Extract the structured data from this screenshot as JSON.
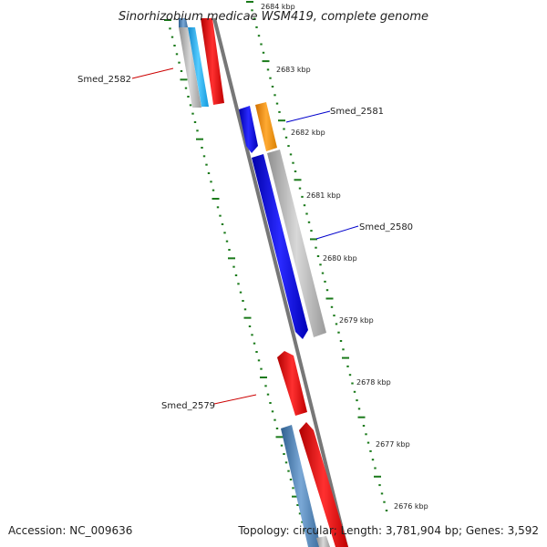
{
  "title": "Sinorhizobium medicae WSM419, complete genome",
  "footer": {
    "accession": "Accession: NC_009636",
    "summary": "Topology: circular; Length: 3,781,904 bp; Genes: 3,592"
  },
  "colors": {
    "backbone": "#777777",
    "tick": "#1a7a1a",
    "gene_label_red": "#cc0000",
    "gene_label_blue": "#0000cc"
  },
  "ticks": [
    {
      "kbp": 2684,
      "label": "2684 kbp"
    },
    {
      "kbp": 2683,
      "label": "2683 kbp"
    },
    {
      "kbp": 2682,
      "label": "2682 kbp"
    },
    {
      "kbp": 2681,
      "label": "2681 kbp"
    },
    {
      "kbp": 2680,
      "label": "2680 kbp"
    },
    {
      "kbp": 2679,
      "label": "2679 kbp"
    },
    {
      "kbp": 2678,
      "label": "2678 kbp"
    },
    {
      "kbp": 2677,
      "label": "2677 kbp"
    },
    {
      "kbp": 2676,
      "label": "2676 kbp"
    }
  ],
  "gene_labels": [
    {
      "name": "Smed_2582",
      "color": "#cc0000"
    },
    {
      "name": "Smed_2581",
      "color": "#0000cc"
    },
    {
      "name": "Smed_2580",
      "color": "#0000cc"
    },
    {
      "name": "Smed_2579",
      "color": "#cc0000"
    }
  ],
  "features": [
    {
      "name": "gray-feature",
      "color": "#b0b0b0"
    },
    {
      "name": "cyan-feature",
      "color": "#22aaee"
    },
    {
      "name": "red-feature",
      "color": "#ee0000"
    },
    {
      "name": "blue-feature",
      "color": "#0000ee"
    },
    {
      "name": "orange-feature",
      "color": "#ff9900"
    },
    {
      "name": "steelblue-feature",
      "color": "#4a7fb5"
    }
  ]
}
